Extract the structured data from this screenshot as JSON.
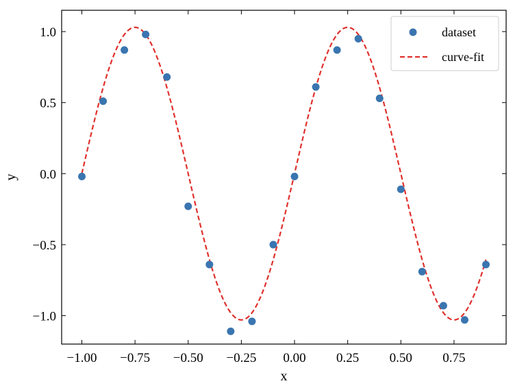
{
  "chart_data": {
    "type": "scatter",
    "title": "",
    "xlabel": "x",
    "ylabel": "y",
    "xlim": [
      -1.095,
      0.995
    ],
    "ylim": [
      -1.2,
      1.15
    ],
    "x_ticks": [
      -1.0,
      -0.75,
      -0.5,
      -0.25,
      0.0,
      0.25,
      0.5,
      0.75
    ],
    "x_tick_labels": [
      "−1.00",
      "−0.75",
      "−0.50",
      "−0.25",
      "0.00",
      "0.25",
      "0.50",
      "0.75"
    ],
    "y_ticks": [
      -1.0,
      -0.5,
      0.0,
      0.5,
      1.0
    ],
    "y_tick_labels": [
      "−1.0",
      "−0.5",
      "0.0",
      "0.5",
      "1.0"
    ],
    "grid": false,
    "legend_position": "top-right",
    "series": [
      {
        "name": "dataset",
        "kind": "scatter",
        "color": "#3a75b0",
        "x": [
          -1.0,
          -0.9,
          -0.8,
          -0.7,
          -0.6,
          -0.5,
          -0.4,
          -0.3,
          -0.2,
          -0.1,
          0.0,
          0.1,
          0.2,
          0.3,
          0.4,
          0.5,
          0.6,
          0.7,
          0.8,
          0.9
        ],
        "y": [
          -0.02,
          0.51,
          0.87,
          0.98,
          0.68,
          -0.23,
          -0.64,
          -1.11,
          -1.04,
          -0.5,
          -0.02,
          0.61,
          0.87,
          0.95,
          0.53,
          -0.11,
          -0.69,
          -0.93,
          -1.03,
          -0.64
        ]
      },
      {
        "name": "curve-fit",
        "kind": "line",
        "style": "dashed",
        "color": "#e0312d",
        "function": "y = A*sin(2*pi*f*x + phi)",
        "parameters": {
          "A": 1.03,
          "f": 1.0,
          "phi": 0.0
        },
        "x_range": [
          -1.0,
          0.9
        ]
      }
    ]
  }
}
